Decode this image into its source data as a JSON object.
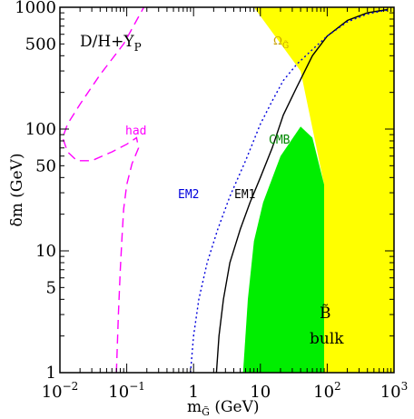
{
  "chart_data": {
    "type": "line",
    "xscale": "log",
    "yscale": "log",
    "xlim": [
      0.01,
      1000
    ],
    "ylim": [
      1,
      1000
    ],
    "xlabel": "m",
    "xlabel_sub": "G̃",
    "xlabel_unit": " (GeV)",
    "ylabel": "δm (GeV)",
    "x_ticks": [
      0.01,
      0.1,
      1,
      10,
      100,
      1000
    ],
    "x_tick_labels": [
      {
        "base": "10",
        "exp": "−2"
      },
      {
        "base": "10",
        "exp": "−1"
      },
      {
        "base": "1",
        "exp": ""
      },
      {
        "base": "10",
        "exp": ""
      },
      {
        "base": "10",
        "exp": "2"
      },
      {
        "base": "10",
        "exp": "3"
      }
    ],
    "y_ticks": [
      1,
      5,
      10,
      50,
      100,
      500,
      1000
    ],
    "y_tick_labels": [
      "1",
      "5",
      "10",
      "50",
      "100",
      "500",
      "1000"
    ],
    "regions": [
      {
        "name": "omega",
        "label": "Ω",
        "label_sub": "G̃",
        "color": "#ffff00",
        "polygon": [
          [
            8,
            1000
          ],
          [
            1000,
            1000
          ],
          [
            1000,
            1
          ],
          [
            90,
            1
          ],
          [
            90,
            35
          ],
          [
            40,
            300
          ],
          [
            8,
            1000
          ]
        ]
      },
      {
        "name": "cmb",
        "label": "CMB",
        "color": "#00ee00",
        "polygon": [
          [
            5.5,
            1
          ],
          [
            90,
            1
          ],
          [
            90,
            35
          ],
          [
            60,
            85
          ],
          [
            40,
            105
          ],
          [
            20,
            60
          ],
          [
            11,
            25
          ],
          [
            8,
            12
          ],
          [
            6.5,
            4
          ],
          [
            5.5,
            1
          ]
        ]
      }
    ],
    "series": [
      {
        "name": "EM1",
        "color": "#000000",
        "dash": "solid",
        "points": [
          [
            2.2,
            1
          ],
          [
            2.4,
            2
          ],
          [
            2.8,
            4
          ],
          [
            3.5,
            8
          ],
          [
            5,
            15
          ],
          [
            7,
            25
          ],
          [
            10,
            40
          ],
          [
            15,
            70
          ],
          [
            22,
            130
          ],
          [
            35,
            220
          ],
          [
            60,
            400
          ],
          [
            100,
            580
          ],
          [
            200,
            780
          ],
          [
            400,
            900
          ],
          [
            800,
            960
          ]
        ]
      },
      {
        "name": "EM2",
        "color": "#0000dd",
        "dash": "dotted",
        "points": [
          [
            0.9,
            1
          ],
          [
            1,
            2
          ],
          [
            1.2,
            4
          ],
          [
            1.6,
            8
          ],
          [
            2.3,
            15
          ],
          [
            3.5,
            28
          ],
          [
            6,
            55
          ],
          [
            10,
            110
          ],
          [
            15,
            170
          ],
          [
            22,
            250
          ],
          [
            35,
            340
          ],
          [
            60,
            450
          ],
          [
            100,
            580
          ],
          [
            200,
            760
          ],
          [
            400,
            880
          ],
          [
            800,
            950
          ]
        ]
      },
      {
        "name": "had",
        "color": "#ff00ff",
        "dash": "dashed",
        "points": [
          [
            0.07,
            1
          ],
          [
            0.075,
            3
          ],
          [
            0.08,
            7
          ],
          [
            0.085,
            13
          ],
          [
            0.09,
            22
          ],
          [
            0.1,
            35
          ],
          [
            0.12,
            52
          ],
          [
            0.15,
            70
          ],
          [
            0.14,
            85
          ],
          [
            0.1,
            75
          ],
          [
            0.06,
            65
          ],
          [
            0.03,
            55
          ],
          [
            0.018,
            55
          ],
          [
            0.013,
            65
          ],
          [
            0.011,
            85
          ],
          [
            0.013,
            110
          ],
          [
            0.02,
            160
          ],
          [
            0.04,
            280
          ],
          [
            0.09,
            500
          ],
          [
            0.14,
            780
          ],
          [
            0.18,
            1000
          ]
        ]
      }
    ],
    "labels": {
      "top_left": {
        "main": "D/H+Y",
        "sub": "P"
      },
      "had": "had",
      "cmb": "CMB",
      "em1": "EM1",
      "em2": "EM2",
      "bulk_symbol": "B̃",
      "bulk": "bulk",
      "omega": "Ω",
      "omega_sub": "G̃"
    }
  }
}
